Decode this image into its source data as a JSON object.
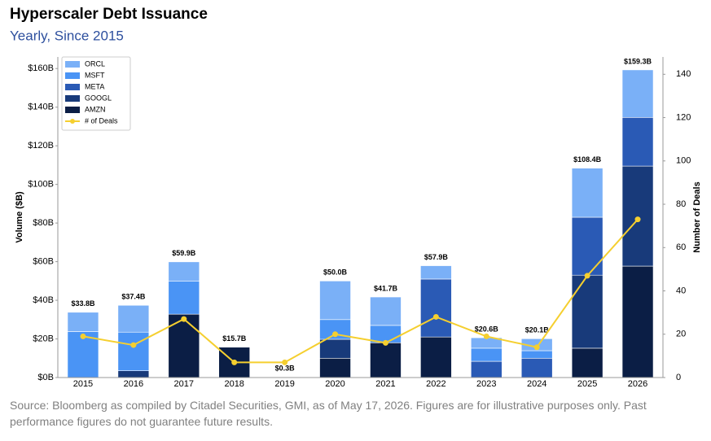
{
  "chart_data": {
    "type": "bar",
    "stacked": true,
    "title": "Hyperscaler Debt Issuance",
    "subtitle": "Yearly, Since 2015",
    "ylabel": "Volume ($B)",
    "y2label": "Number of Deals",
    "source": "Source: Bloomberg as compiled by Citadel Securities, GMI, as of May 17, 2026. Figures are for illustrative purposes only. Past performance figures do not guarantee future results.",
    "categories": [
      "2015",
      "2016",
      "2017",
      "2018",
      "2019",
      "2020",
      "2021",
      "2022",
      "2023",
      "2024",
      "2025",
      "2026"
    ],
    "series": [
      {
        "name": "AMZN",
        "color": "#0b1e45",
        "values": [
          0,
          0,
          32.8,
          15.7,
          0.3,
          10,
          18,
          21,
          0,
          0,
          15.2,
          57.7
        ]
      },
      {
        "name": "GOOGL",
        "color": "#183a7a",
        "values": [
          0,
          3.5,
          0,
          0,
          0,
          9.8,
          0,
          0,
          0,
          0,
          37.8,
          51.8
        ]
      },
      {
        "name": "META",
        "color": "#2a5ab5",
        "values": [
          0,
          0,
          0,
          0,
          0,
          0,
          0,
          30,
          8.4,
          10,
          30,
          25.2
        ]
      },
      {
        "name": "MSFT",
        "color": "#4a94f5",
        "values": [
          23.8,
          20,
          17.2,
          0,
          0,
          10.2,
          9,
          0,
          6.8,
          3.9,
          0,
          0
        ]
      },
      {
        "name": "ORCL",
        "color": "#7ab0f7",
        "values": [
          10,
          13.9,
          9.9,
          0,
          0,
          20,
          14.7,
          6.9,
          5.4,
          6.2,
          25.4,
          24.6
        ]
      },
      {
        "name": "# of Deals",
        "type": "line",
        "axis": "y2",
        "color": "#f5cf2f",
        "values": [
          19,
          15,
          27,
          7,
          7,
          20,
          16,
          28,
          19,
          14,
          47,
          73
        ]
      }
    ],
    "totals": {
      "values": [
        33.8,
        37.4,
        59.9,
        15.7,
        0.3,
        50.0,
        41.7,
        57.9,
        20.6,
        20.1,
        108.4,
        159.3
      ],
      "value_labels": [
        "$33.8B",
        "$37.4B",
        "$59.9B",
        "$15.7B",
        "$0.3B",
        "$50.0B",
        "$41.7B",
        "$57.9B",
        "$20.6B",
        "$20.1B",
        "$108.4B",
        "$159.3B"
      ]
    },
    "ylim": [
      0,
      166
    ],
    "yticks": [
      {
        "value": 0,
        "label": "$0B"
      },
      {
        "value": 20,
        "label": "$20B"
      },
      {
        "value": 40,
        "label": "$40B"
      },
      {
        "value": 60,
        "label": "$60B"
      },
      {
        "value": 80,
        "label": "$80B"
      },
      {
        "value": 100,
        "label": "$100B"
      },
      {
        "value": 120,
        "label": "$120B"
      },
      {
        "value": 140,
        "label": "$140B"
      },
      {
        "value": 160,
        "label": "$160B"
      }
    ],
    "y2lim": [
      0,
      148
    ],
    "y2ticks": [
      0,
      20,
      40,
      60,
      80,
      100,
      120,
      140
    ],
    "legend": "upper left",
    "grid": false
  }
}
